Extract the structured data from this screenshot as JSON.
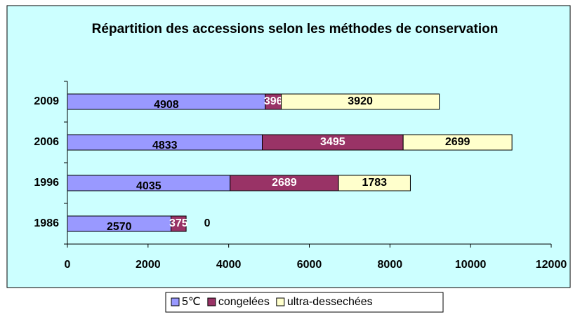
{
  "chart_data": {
    "type": "hbar_stacked",
    "title": "Répartition des accessions selon les méthodes de conservation",
    "categories": [
      "2009",
      "2006",
      "1996",
      "1986"
    ],
    "series": [
      {
        "name": "5℃",
        "color": "#9999ff",
        "values": [
          4908,
          4833,
          4035,
          2570
        ]
      },
      {
        "name": "congelées",
        "color": "#993366",
        "values": [
          396,
          3495,
          2689,
          375
        ]
      },
      {
        "name": "ultra-dessechées",
        "color": "#ffffcc",
        "values": [
          3920,
          2699,
          1783,
          0
        ]
      }
    ],
    "xlim": [
      0,
      12000
    ],
    "xticks": [
      0,
      2000,
      4000,
      6000,
      8000,
      10000,
      12000
    ],
    "legend": "bottom"
  }
}
